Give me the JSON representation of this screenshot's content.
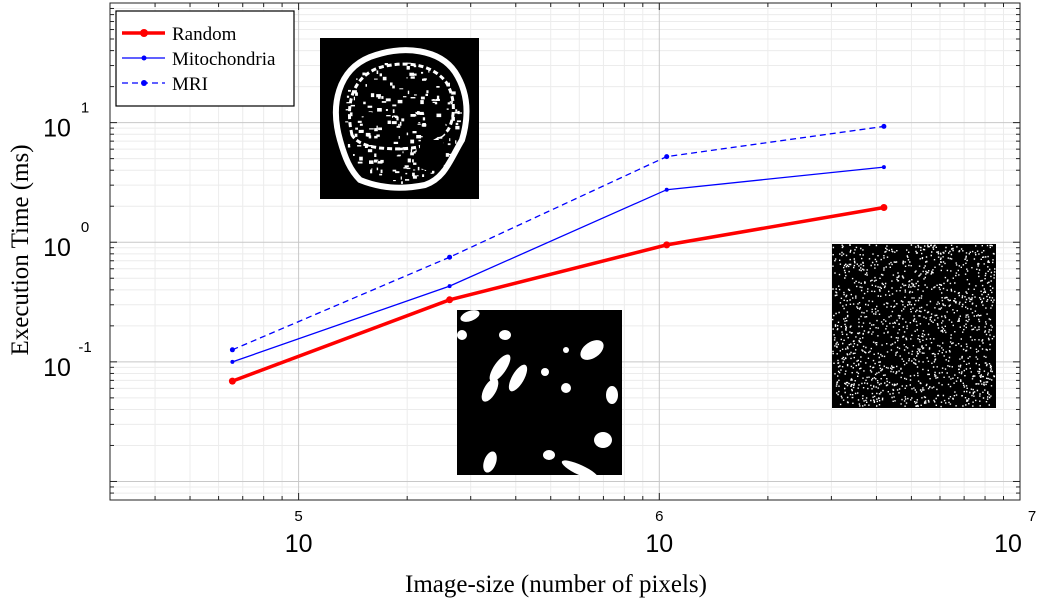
{
  "chart_data": {
    "type": "line",
    "title": "",
    "xlabel": "Image-size (number of pixels)",
    "ylabel": "Execution Time (ms)",
    "x_scale": "log",
    "y_scale": "log",
    "xlim": [
      30000,
      10000000
    ],
    "ylim": [
      0.007,
      100
    ],
    "grid": true,
    "legend_position": "top-left",
    "x_ticks": [
      {
        "value": 100000,
        "base": "10",
        "exp": "5"
      },
      {
        "value": 1000000,
        "base": "10",
        "exp": "6"
      },
      {
        "value": 10000000,
        "base": "10",
        "exp": "7"
      }
    ],
    "y_ticks": [
      {
        "value": 10,
        "base": "10",
        "exp": "1"
      },
      {
        "value": 1,
        "base": "10",
        "exp": "0"
      },
      {
        "value": 0.1,
        "base": "10",
        "exp": "-1"
      }
    ],
    "x": [
      65536,
      262144,
      1048576,
      4194304
    ],
    "series": [
      {
        "name": "Random",
        "values": [
          0.069,
          0.33,
          0.95,
          1.95
        ],
        "color": "#ff0000",
        "style": "solid-thick"
      },
      {
        "name": "Mitochondria",
        "values": [
          0.1,
          0.43,
          2.75,
          4.25
        ],
        "color": "#0000ff",
        "style": "solid-thin"
      },
      {
        "name": "MRI",
        "values": [
          0.126,
          0.75,
          5.2,
          9.3
        ],
        "color": "#0000ff",
        "style": "dashed"
      }
    ]
  },
  "insets": [
    {
      "name": "mri-brain-inset-image",
      "content": "binary MRI brain slice"
    },
    {
      "name": "mitochondria-inset-image",
      "content": "binary mitochondria blobs"
    },
    {
      "name": "random-noise-inset-image",
      "content": "random binary noise"
    }
  ]
}
